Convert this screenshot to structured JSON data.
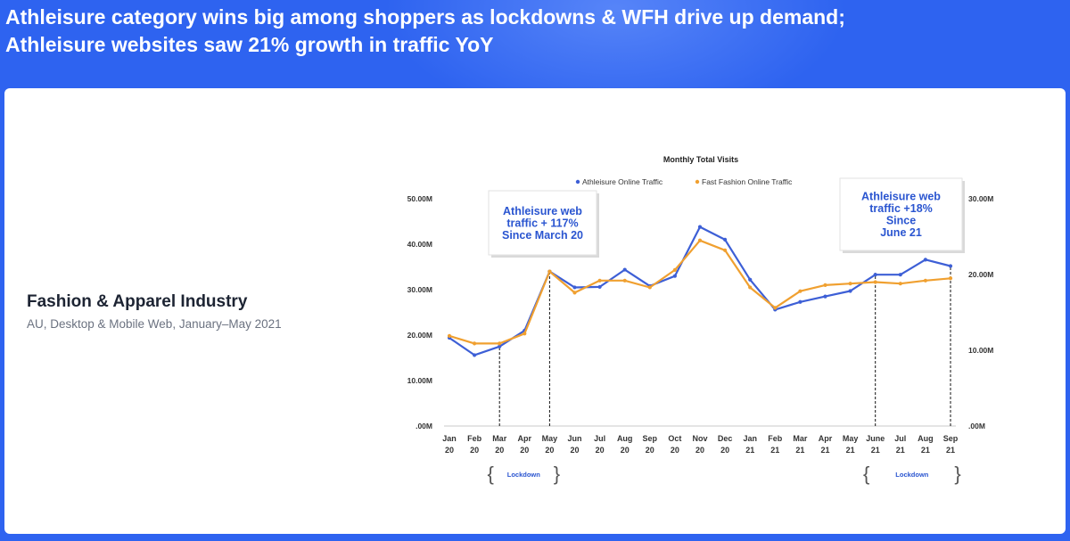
{
  "headline": {
    "line1": "Athleisure category wins big among shoppers as lockdowns & WFH drive up demand;",
    "line2": "Athleisure websites saw 21% growth in traffic YoY"
  },
  "panel": {
    "title": "Fashion & Apparel Industry",
    "subtitle": "AU, Desktop & Mobile Web, January–May 2021"
  },
  "colors": {
    "background": "#2e63f0",
    "athleisure": "#3d5fd6",
    "fast_fashion": "#f0a030",
    "callout_text": "#2a55d0"
  },
  "chart_data": {
    "type": "line",
    "title": "Monthly Total Visits",
    "legend_placement": "top",
    "grid": false,
    "categories": [
      [
        "Jan",
        "20"
      ],
      [
        "Feb",
        "20"
      ],
      [
        "Mar",
        "20"
      ],
      [
        "Apr",
        "20"
      ],
      [
        "May",
        "20"
      ],
      [
        "Jun",
        "20"
      ],
      [
        "Jul",
        "20"
      ],
      [
        "Aug",
        "20"
      ],
      [
        "Sep",
        "20"
      ],
      [
        "Oct",
        "20"
      ],
      [
        "Nov",
        "20"
      ],
      [
        "Dec",
        "20"
      ],
      [
        "Jan",
        "21"
      ],
      [
        "Feb",
        "21"
      ],
      [
        "Mar",
        "21"
      ],
      [
        "Apr",
        "21"
      ],
      [
        "May",
        "21"
      ],
      [
        "June",
        "21"
      ],
      [
        "Jul",
        "21"
      ],
      [
        "Aug",
        "21"
      ],
      [
        "Sep",
        "21"
      ]
    ],
    "y_left": {
      "ticks": [
        ".00M",
        "10.00M",
        "20.00M",
        "30.00M",
        "40.00M",
        "50.00M"
      ],
      "range": [
        0,
        50
      ]
    },
    "y_right": {
      "ticks": [
        ".00M",
        "10.00M",
        "20.00M",
        "30.00M"
      ],
      "range": [
        0,
        30
      ]
    },
    "series": [
      {
        "name": "Athleisure Online Traffic",
        "axis": "left",
        "values": [
          19.4,
          15.6,
          17.5,
          21.0,
          34.0,
          30.5,
          30.6,
          34.4,
          30.8,
          33.0,
          43.8,
          41.0,
          32.2,
          25.6,
          27.3,
          28.5,
          29.7,
          33.3,
          33.3,
          36.6,
          35.2
        ]
      },
      {
        "name": "Fast Fashion Online Traffic",
        "axis": "right",
        "values": [
          11.9,
          10.9,
          10.9,
          12.2,
          20.4,
          17.6,
          19.2,
          19.2,
          18.3,
          20.6,
          24.5,
          23.2,
          18.3,
          15.6,
          17.8,
          18.6,
          18.8,
          19.0,
          18.8,
          19.2,
          19.5
        ]
      }
    ],
    "annotations": [
      {
        "lines": [
          "Athleisure web",
          "traffic + 117%",
          "Since March 20"
        ]
      },
      {
        "lines": [
          "Athleisure web",
          "traffic +18%",
          "Since",
          "June 21"
        ]
      }
    ],
    "periods": [
      {
        "label": "Lockdown",
        "from_index": 2,
        "to_index": 4
      },
      {
        "label": "Lockdown",
        "from_index": 17,
        "to_index": 20
      }
    ]
  }
}
